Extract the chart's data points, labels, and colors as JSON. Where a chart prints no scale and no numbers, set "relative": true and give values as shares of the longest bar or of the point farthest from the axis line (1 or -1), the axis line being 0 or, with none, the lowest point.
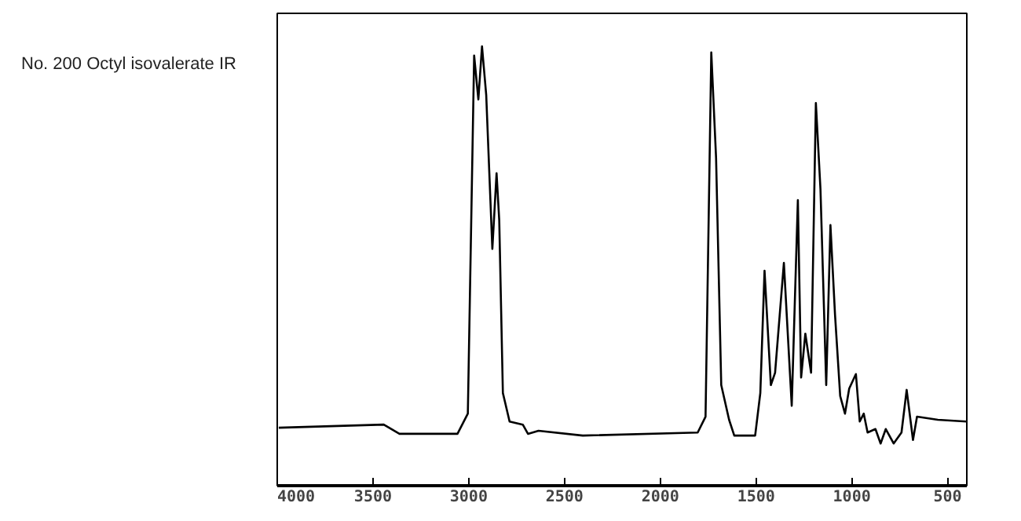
{
  "chart_data": {
    "type": "line",
    "title": "No. 200 Octyl isovalerate IR",
    "relative": true,
    "color": "#000000",
    "xlim": [
      4000,
      400
    ],
    "xticks": [
      4000,
      3500,
      3000,
      2500,
      2000,
      1500,
      1000,
      500
    ],
    "grid": false,
    "legend": false,
    "x": [
      3992,
      3444,
      3362,
      3059,
      3005,
      2972,
      2950,
      2931,
      2909,
      2877,
      2855,
      2841,
      2822,
      2787,
      2718,
      2691,
      2636,
      2405,
      1805,
      1764,
      1734,
      1709,
      1682,
      1641,
      1614,
      1505,
      1478,
      1456,
      1423,
      1401,
      1355,
      1314,
      1282,
      1265,
      1243,
      1213,
      1188,
      1164,
      1134,
      1112,
      1088,
      1061,
      1036,
      1014,
      979,
      959,
      938,
      918,
      877,
      850,
      823,
      782,
      741,
      714,
      681,
      660,
      551,
      400
    ],
    "values": [
      0.132,
      0.139,
      0.118,
      0.118,
      0.164,
      0.979,
      0.879,
      1.0,
      0.889,
      0.539,
      0.711,
      0.604,
      0.211,
      0.146,
      0.139,
      0.118,
      0.125,
      0.114,
      0.121,
      0.157,
      0.986,
      0.746,
      0.229,
      0.15,
      0.114,
      0.114,
      0.211,
      0.489,
      0.229,
      0.257,
      0.507,
      0.182,
      0.65,
      0.246,
      0.346,
      0.257,
      0.871,
      0.675,
      0.229,
      0.593,
      0.389,
      0.204,
      0.164,
      0.221,
      0.254,
      0.146,
      0.164,
      0.121,
      0.129,
      0.096,
      0.129,
      0.096,
      0.121,
      0.218,
      0.104,
      0.157,
      0.15,
      0.146
    ]
  }
}
